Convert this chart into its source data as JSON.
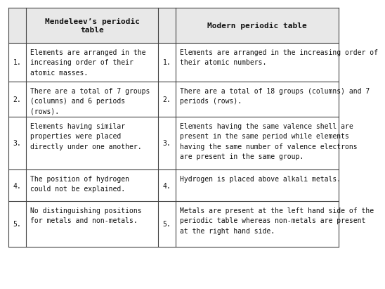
{
  "header_left": "Mendeleev’s periodic\ntable",
  "header_right": "Modern periodic table",
  "rows": [
    {
      "num": "1.",
      "left": "Elements are arranged in the\nincreasing order of their\natomic masses.",
      "right": "Elements are arranged in the increasing order of\ntheir atomic numbers."
    },
    {
      "num": "2.",
      "left": "There are a total of 7 groups\n(columns) and 6 periods\n(rows).",
      "right": "There are a total of 18 groups (columns) and 7\nperiods (rows)."
    },
    {
      "num": "3.",
      "left": "Elements having similar\nproperties were placed\ndirectly under one another.",
      "right": "Elements having the same valence shell are\npresent in the same period while elements\nhaving the same number of valence electrons\nare present in the same group."
    },
    {
      "num": "4.",
      "left": "The position of hydrogen\ncould not be explained.",
      "right": "Hydrogen is placed above alkali metals."
    },
    {
      "num": "5.",
      "left": "No distinguishing positions\nfor metals and non-metals.",
      "right": "Metals are present at the left hand side of the\nperiodic table whereas non-metals are present\nat the right hand side."
    }
  ],
  "bg_color": "#ffffff",
  "header_bg": "#e8e8e8",
  "line_color": "#444444",
  "text_color": "#111111",
  "font_size": 7.0,
  "header_font_size": 8.0,
  "fig_width": 4.74,
  "fig_height": 3.92
}
